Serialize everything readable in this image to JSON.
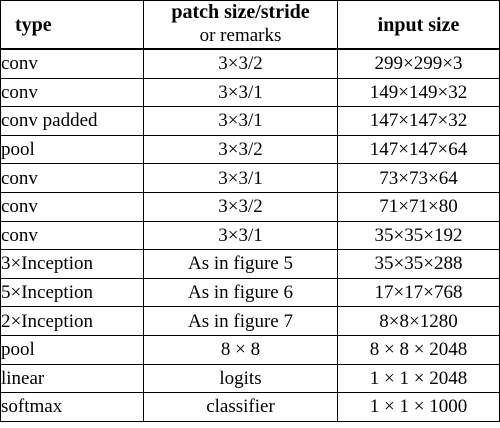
{
  "table": {
    "headers": {
      "type": "type",
      "patch": "patch size/stride",
      "patch_sub": "or remarks",
      "input": "input size"
    },
    "rows": [
      {
        "type": "conv",
        "patch": "3×3/2",
        "input": "299×299×3"
      },
      {
        "type": "conv",
        "patch": "3×3/1",
        "input": "149×149×32"
      },
      {
        "type": "conv padded",
        "patch": "3×3/1",
        "input": "147×147×32"
      },
      {
        "type": "pool",
        "patch": "3×3/2",
        "input": "147×147×64"
      },
      {
        "type": "conv",
        "patch": "3×3/1",
        "input": "73×73×64"
      },
      {
        "type": "conv",
        "patch": "3×3/2",
        "input": "71×71×80"
      },
      {
        "type": "conv",
        "patch": "3×3/1",
        "input": "35×35×192"
      },
      {
        "type": "3×Inception",
        "patch": "As in figure 5",
        "input": "35×35×288"
      },
      {
        "type": "5×Inception",
        "patch": "As in figure 6",
        "input": "17×17×768"
      },
      {
        "type": "2×Inception",
        "patch": "As in figure 7",
        "input": "8×8×1280"
      },
      {
        "type": "pool",
        "patch": "8 × 8",
        "input": "8 × 8 × 2048"
      },
      {
        "type": "linear",
        "patch": "logits",
        "input": "1 × 1 × 2048"
      },
      {
        "type": "softmax",
        "patch": "classifier",
        "input": "1 × 1 × 1000"
      }
    ]
  }
}
